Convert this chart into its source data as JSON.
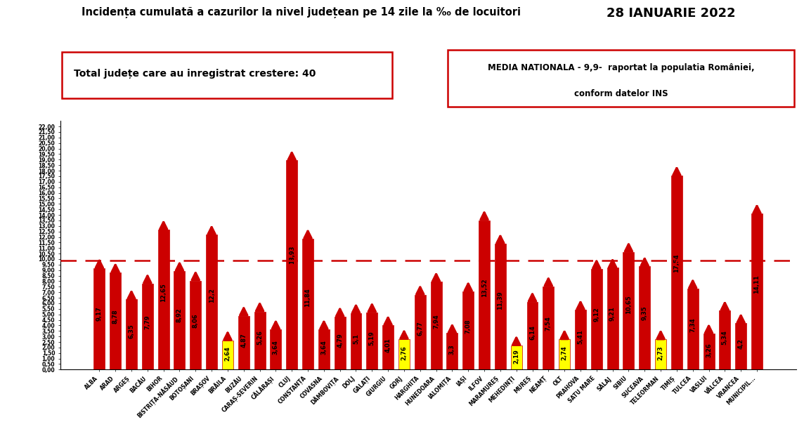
{
  "title": "Incidența cumulată a cazurilor la nivel județean pe 14 zile la ‰ de locuitori",
  "date": "28 IANUARIE 2022",
  "box1_text": "Total județe care au inregistrat crestere: 40",
  "box2_line1": "MEDIA NATIONALA - 9,9-  raportat la populatia României,",
  "box2_line2": "conform datelor INS",
  "reference_line": 9.9,
  "categories": [
    "ALBA",
    "ARAD",
    "ARGEȘ",
    "BACĂU",
    "BIHOR",
    "BISTRIȚA-NĂSĂUD",
    "BOTOȘANI",
    "BRAȘOV",
    "BRĂILA",
    "BUZĂU",
    "CARAȘ-SEVERIN",
    "CĂLĂRAȘI",
    "CLUJ",
    "CONSTANȚA",
    "COVASNA",
    "DÂMBOVIȚA",
    "DOLJ",
    "GALAȚI",
    "GIURGIU",
    "GORJ",
    "HARGHITA",
    "HUNEDOARA",
    "IALOMIȚA",
    "IAȘI",
    "ILFOV",
    "MARAMUREȘ",
    "MEHEDINȚI",
    "MUREȘ",
    "NEAMȚ",
    "OLT",
    "PRAHOVA",
    "SATU MARE",
    "SĂLAJ",
    "SIBIU",
    "SUCEAVA",
    "TELEORMAN",
    "TIMIȘ",
    "TULCEA",
    "VASLUI",
    "VÂLCEA",
    "VRANCEA",
    "MUNICIPIL..."
  ],
  "values": [
    9.17,
    8.78,
    6.35,
    7.79,
    12.65,
    8.92,
    8.06,
    12.2,
    2.64,
    4.87,
    5.26,
    3.64,
    18.93,
    11.84,
    3.64,
    4.79,
    5.1,
    5.19,
    4.01,
    2.76,
    6.77,
    7.94,
    3.3,
    7.08,
    13.52,
    11.39,
    2.19,
    6.14,
    7.54,
    2.74,
    5.41,
    9.12,
    9.21,
    10.65,
    9.35,
    2.73,
    17.54,
    7.34,
    3.26,
    5.34,
    4.2,
    14.11
  ],
  "bar_colors": [
    "#cc0000",
    "#cc0000",
    "#cc0000",
    "#cc0000",
    "#cc0000",
    "#cc0000",
    "#cc0000",
    "#cc0000",
    "#ffff00",
    "#cc0000",
    "#cc0000",
    "#cc0000",
    "#cc0000",
    "#cc0000",
    "#cc0000",
    "#cc0000",
    "#cc0000",
    "#cc0000",
    "#cc0000",
    "#ffff00",
    "#cc0000",
    "#cc0000",
    "#cc0000",
    "#cc0000",
    "#cc0000",
    "#cc0000",
    "#ffff00",
    "#cc0000",
    "#cc0000",
    "#ffff00",
    "#cc0000",
    "#cc0000",
    "#cc0000",
    "#cc0000",
    "#cc0000",
    "#ffff00",
    "#cc0000",
    "#cc0000",
    "#cc0000",
    "#cc0000",
    "#cc0000",
    "#cc0000"
  ],
  "yticks": [
    0.0,
    0.5,
    1.0,
    1.5,
    2.0,
    2.5,
    3.0,
    3.5,
    4.0,
    4.5,
    5.0,
    5.5,
    6.0,
    6.5,
    7.0,
    7.5,
    8.0,
    8.5,
    9.0,
    9.5,
    10.0,
    10.5,
    11.0,
    11.5,
    12.0,
    12.5,
    13.0,
    13.5,
    14.0,
    14.5,
    15.0,
    15.5,
    16.0,
    16.5,
    17.0,
    17.5,
    18.0,
    18.5,
    19.0,
    19.5,
    20.0,
    20.5,
    21.0,
    21.5,
    22.0
  ],
  "ylim": [
    0,
    22.5
  ],
  "bg_color": "#ffffff"
}
